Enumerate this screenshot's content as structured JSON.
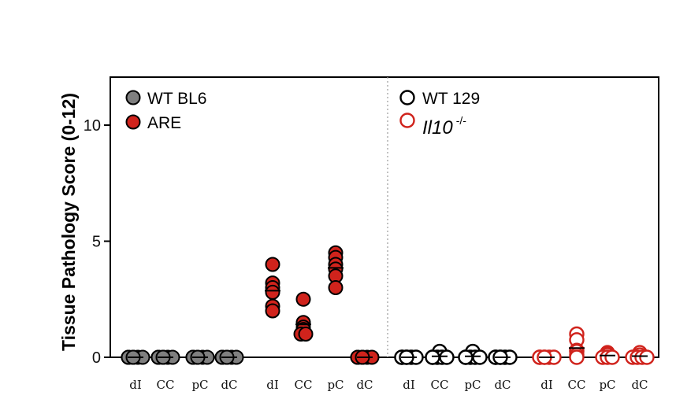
{
  "chart_data": {
    "type": "scatter",
    "ylabel": "Tissue Pathology Score (0-12)",
    "ylim": [
      0,
      12
    ],
    "yticks": [
      0,
      5,
      10
    ],
    "tick_labels": [
      "0",
      "5",
      "10"
    ],
    "categories": [
      "dI",
      "CC",
      "pC",
      "dC",
      "dI",
      "CC",
      "pC",
      "dC",
      "dI",
      "CC",
      "pC",
      "dC",
      "dI",
      "CC",
      "pC",
      "dC"
    ],
    "divider_after_group": 2,
    "legend": [
      {
        "label": "WT BL6",
        "style": "filled",
        "color": "#7f7f7f"
      },
      {
        "label": "ARE",
        "style": "filled",
        "color": "#d0231c"
      },
      {
        "label": "WT 129",
        "style": "open",
        "color": "#000000"
      },
      {
        "label": "Il10",
        "label_sup": "-/-",
        "style": "open",
        "color": "#d0231c"
      }
    ],
    "series": [
      {
        "name": "WT BL6",
        "style": "filled",
        "color": "#7f7f7f",
        "points": [
          {
            "cat": 0,
            "values": [
              0,
              0,
              0,
              0,
              0,
              0
            ]
          },
          {
            "cat": 1,
            "values": [
              0,
              0,
              0,
              0,
              0,
              0
            ]
          },
          {
            "cat": 2,
            "values": [
              0,
              0,
              0,
              0,
              0,
              0
            ]
          },
          {
            "cat": 3,
            "values": [
              0,
              0,
              0,
              0,
              0,
              0
            ]
          }
        ]
      },
      {
        "name": "ARE",
        "style": "filled",
        "color": "#d0231c",
        "points": [
          {
            "cat": 4,
            "values": [
              4,
              3.2,
              3,
              2.8,
              2.2,
              2
            ]
          },
          {
            "cat": 5,
            "values": [
              2.5,
              1.5,
              1.3,
              1.2,
              1,
              1
            ]
          },
          {
            "cat": 6,
            "values": [
              4.5,
              4.3,
              4,
              3.8,
              3.5,
              3
            ]
          },
          {
            "cat": 7,
            "values": [
              0,
              0,
              0,
              0,
              0,
              0
            ]
          }
        ]
      },
      {
        "name": "WT 129",
        "style": "open",
        "color": "#000000",
        "points": [
          {
            "cat": 8,
            "values": [
              0,
              0,
              0,
              0,
              0,
              0
            ]
          },
          {
            "cat": 9,
            "values": [
              0.25,
              0,
              0,
              0,
              0,
              0
            ]
          },
          {
            "cat": 10,
            "values": [
              0.25,
              0,
              0,
              0,
              0,
              0
            ]
          },
          {
            "cat": 11,
            "values": [
              0,
              0,
              0,
              0,
              0,
              0
            ]
          }
        ]
      },
      {
        "name": "Il10 -/-",
        "style": "open",
        "color": "#d0231c",
        "points": [
          {
            "cat": 12,
            "values": [
              0,
              0,
              0,
              0,
              0,
              0
            ]
          },
          {
            "cat": 13,
            "values": [
              1,
              0.75,
              0.3,
              0.25,
              0.1,
              0
            ]
          },
          {
            "cat": 14,
            "values": [
              0.2,
              0.15,
              0.1,
              0,
              0,
              0
            ]
          },
          {
            "cat": 15,
            "values": [
              0.2,
              0.1,
              0,
              0,
              0,
              0
            ]
          }
        ]
      }
    ]
  }
}
